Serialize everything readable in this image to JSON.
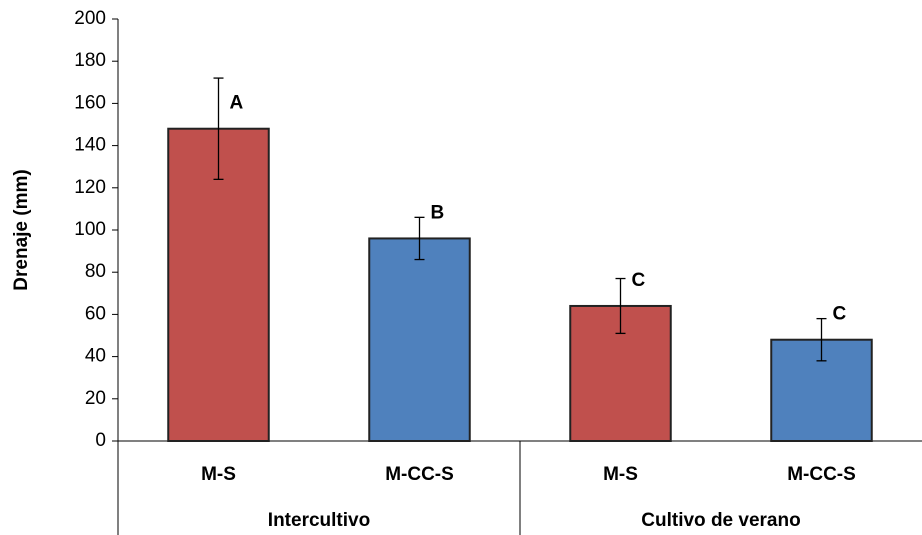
{
  "chart_data": {
    "type": "bar",
    "y_label": "Drenaje (mm)",
    "categories": [
      "M-S",
      "M-CC-S",
      "M-S",
      "M-CC-S"
    ],
    "groups": [
      "Intercultivo",
      "Cultivo de verano"
    ],
    "values": [
      148,
      96,
      64,
      48
    ],
    "errors": [
      24,
      10,
      13,
      10
    ],
    "annotations": [
      "A",
      "B",
      "C",
      "C"
    ],
    "colors": [
      "#c0504d",
      "#4f81bd",
      "#c0504d",
      "#4f81bd"
    ],
    "ylim": [
      0,
      200
    ],
    "yticks": [
      0,
      20,
      40,
      60,
      80,
      100,
      120,
      140,
      160,
      180,
      200
    ],
    "grid": false
  }
}
